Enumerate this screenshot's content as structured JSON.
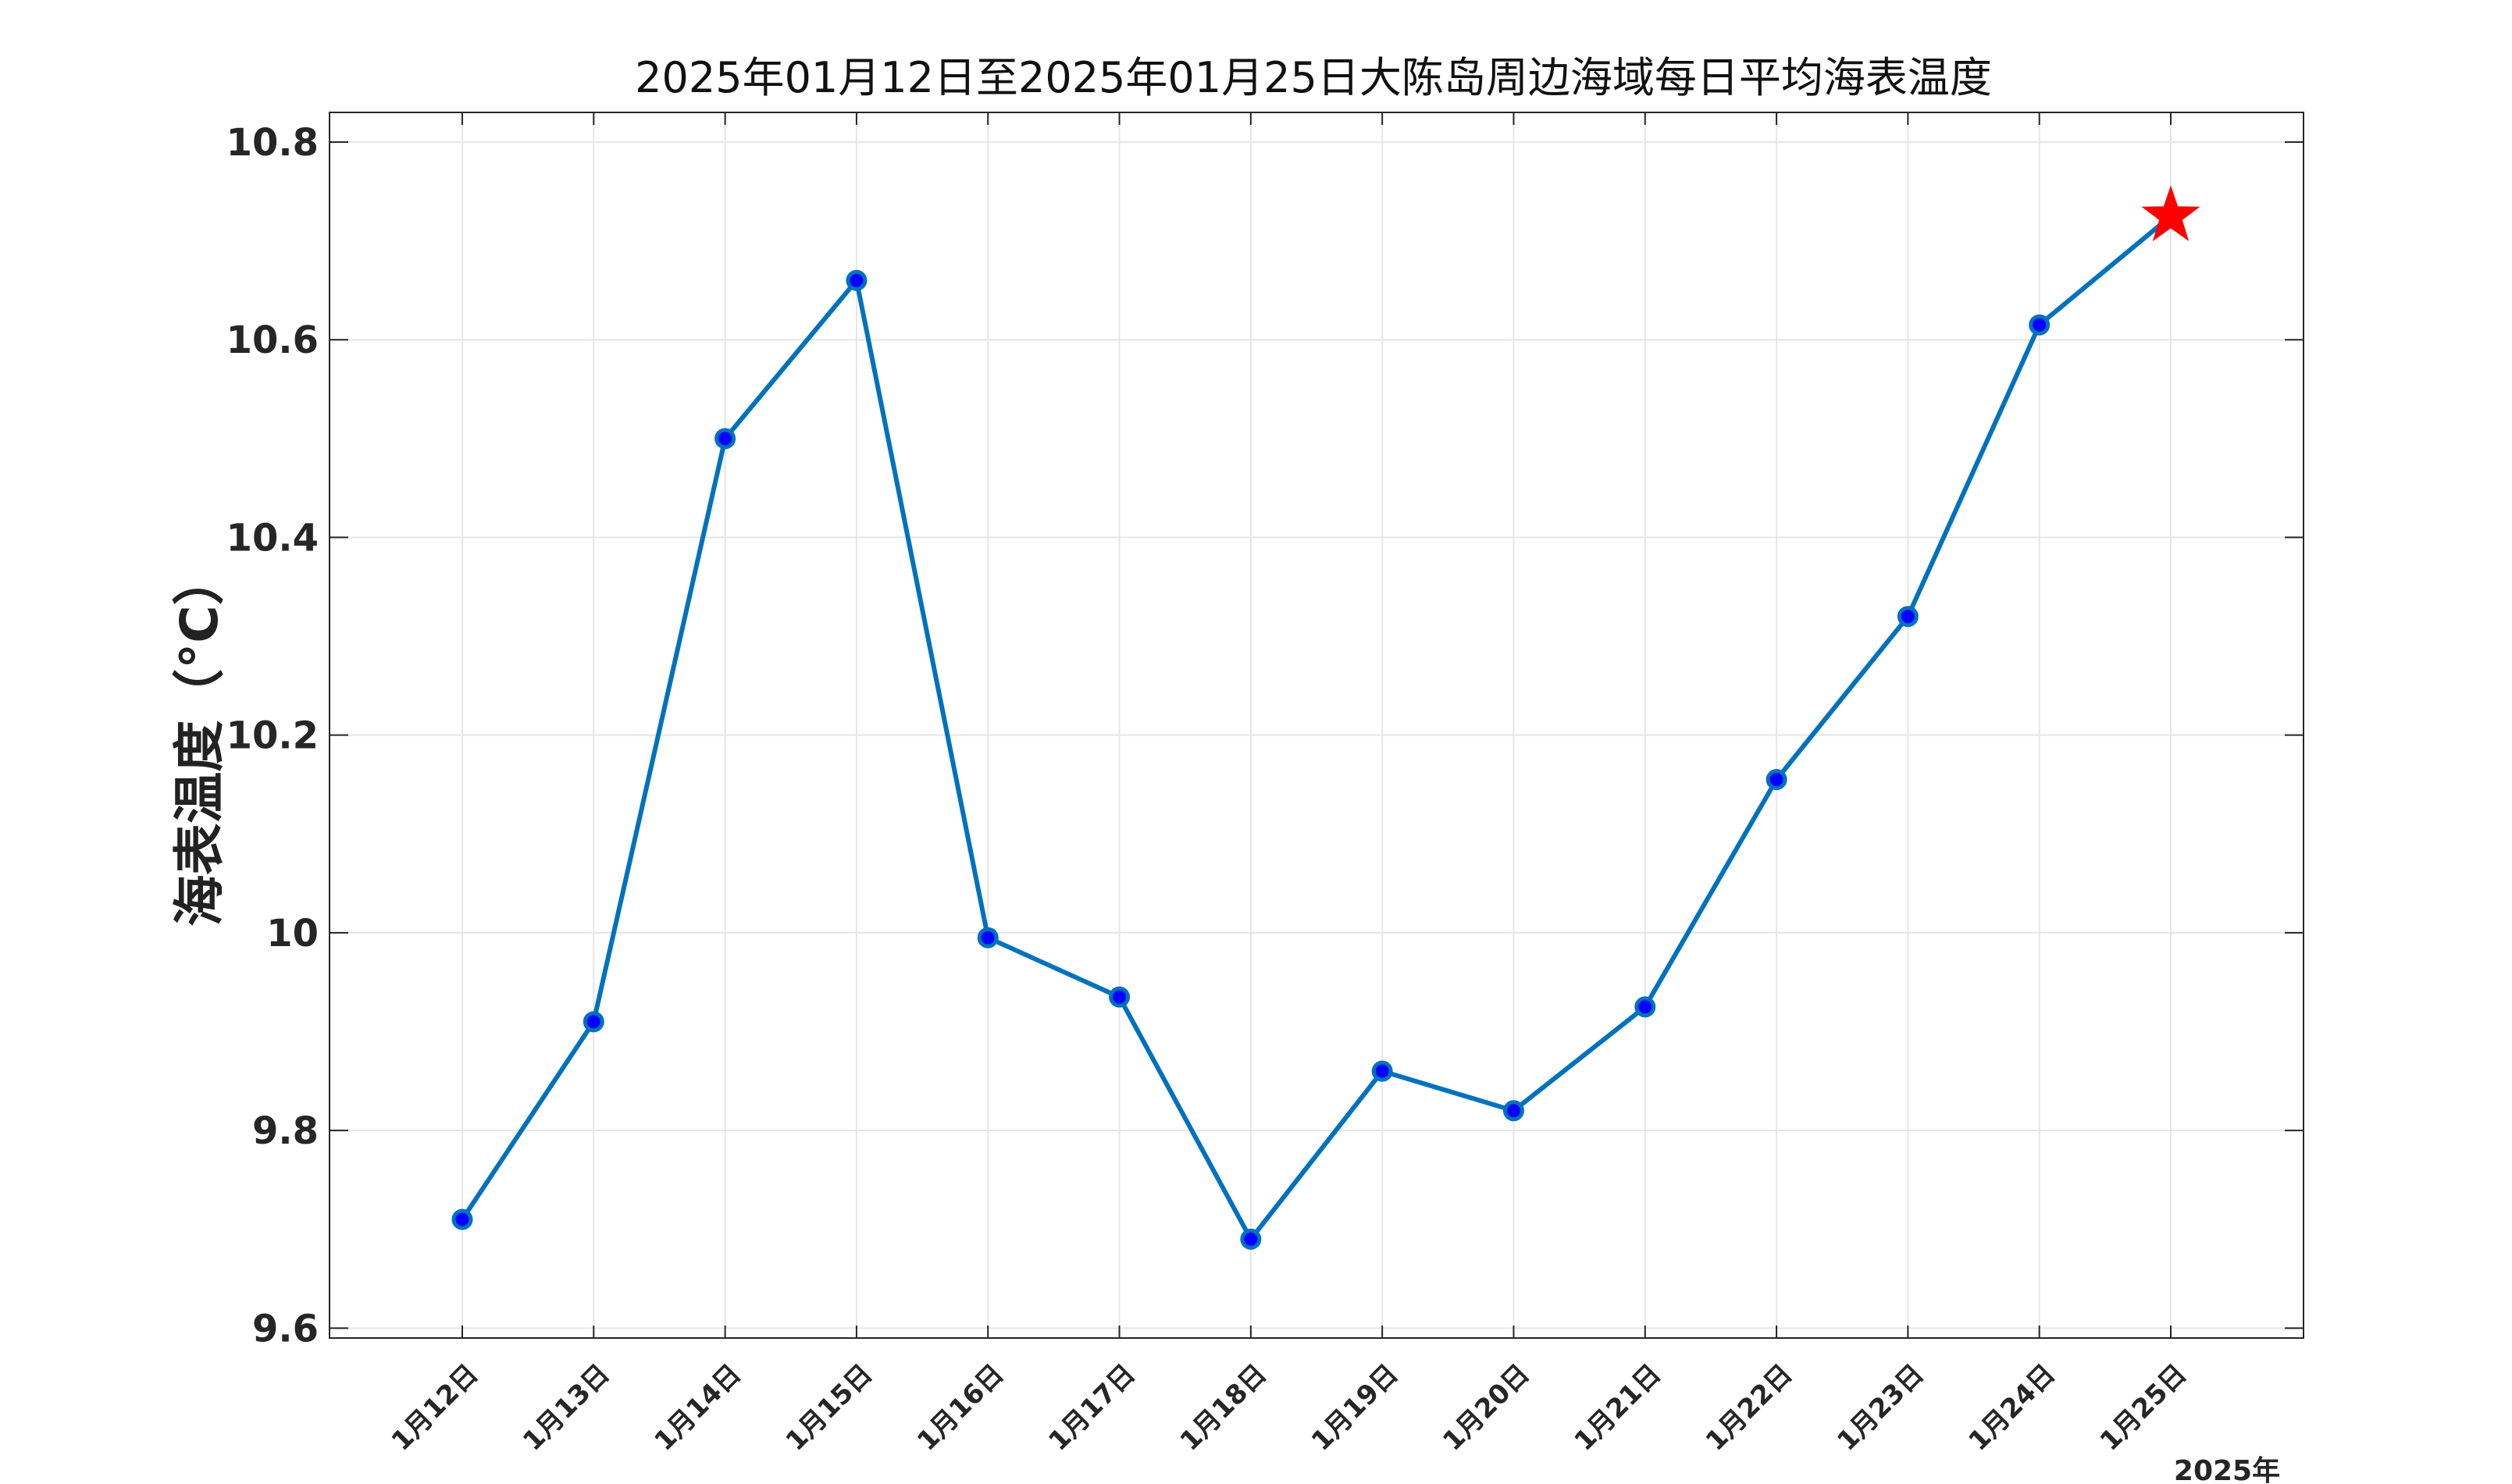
{
  "chart_data": {
    "type": "line",
    "title": "2025年01月12日至2025年01月25日大陈岛周边海域每日平均海表温度",
    "xlabel": "2025年",
    "ylabel": "海表温度（°C）",
    "categories": [
      "1月12日",
      "1月13日",
      "1月14日",
      "1月15日",
      "1月16日",
      "1月17日",
      "1月18日",
      "1月19日",
      "1月20日",
      "1月21日",
      "1月22日",
      "1月23日",
      "1月24日",
      "1月25日"
    ],
    "series": [
      {
        "values": [
          9.71,
          9.91,
          10.5,
          10.66,
          9.995,
          9.935,
          9.69,
          9.86,
          9.82,
          9.925,
          10.155,
          10.32,
          10.615,
          10.725
        ],
        "color": "#0072BD",
        "marker": "circle",
        "marker_color": "#0000FF",
        "last_point_marker": "star",
        "last_point_color": "#FF0000"
      }
    ],
    "yticks": [
      "9.6",
      "9.8",
      "10",
      "10.2",
      "10.4",
      "10.6",
      "10.8"
    ],
    "ylim": [
      9.59,
      10.83
    ],
    "grid": true
  }
}
